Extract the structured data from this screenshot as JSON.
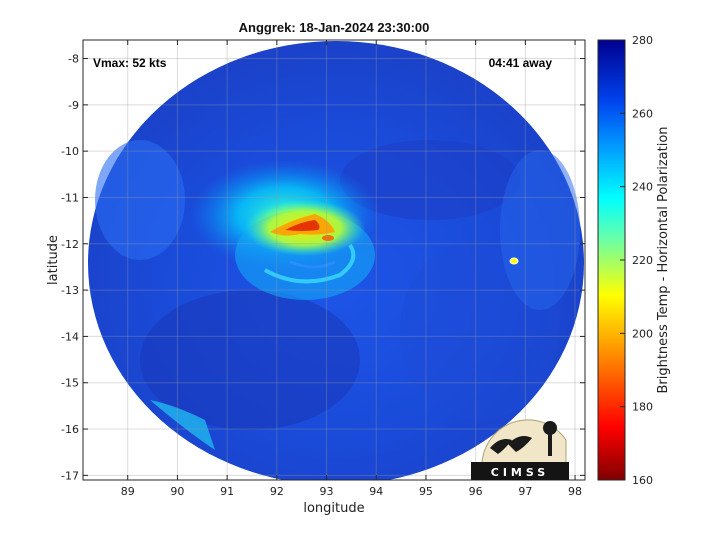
{
  "title": "Anggrek: 18-Jan-2024 23:30:00",
  "annotations": {
    "vmax": "Vmax: 52 kts",
    "time_away": "04:41 away"
  },
  "logo_text": "CIMSS",
  "chart_data": {
    "type": "heatmap",
    "title": "Anggrek: 18-Jan-2024 23:30:00",
    "xlabel": "longitude",
    "ylabel": "latitude",
    "xlim": [
      88.1,
      98.2
    ],
    "ylim": [
      -17.1,
      -7.6
    ],
    "x_ticks": [
      "89",
      "90",
      "91",
      "92",
      "93",
      "94",
      "95",
      "96",
      "97",
      "98"
    ],
    "y_ticks": [
      "-8",
      "-9",
      "-10",
      "-11",
      "-12",
      "-13",
      "-14",
      "-15",
      "-16",
      "-17"
    ],
    "grid": true,
    "colorbar": {
      "label": "Brightness Temp - Horizontal Polarization",
      "range": [
        160,
        280
      ],
      "ticks": [
        "160",
        "180",
        "200",
        "220",
        "240",
        "260",
        "280"
      ]
    },
    "colors": {
      "cold": "#8b0000",
      "mid": "#ffff00",
      "warm_cyan": "#00ffff",
      "warm": "#0044dd",
      "warmest": "#00008b"
    }
  }
}
